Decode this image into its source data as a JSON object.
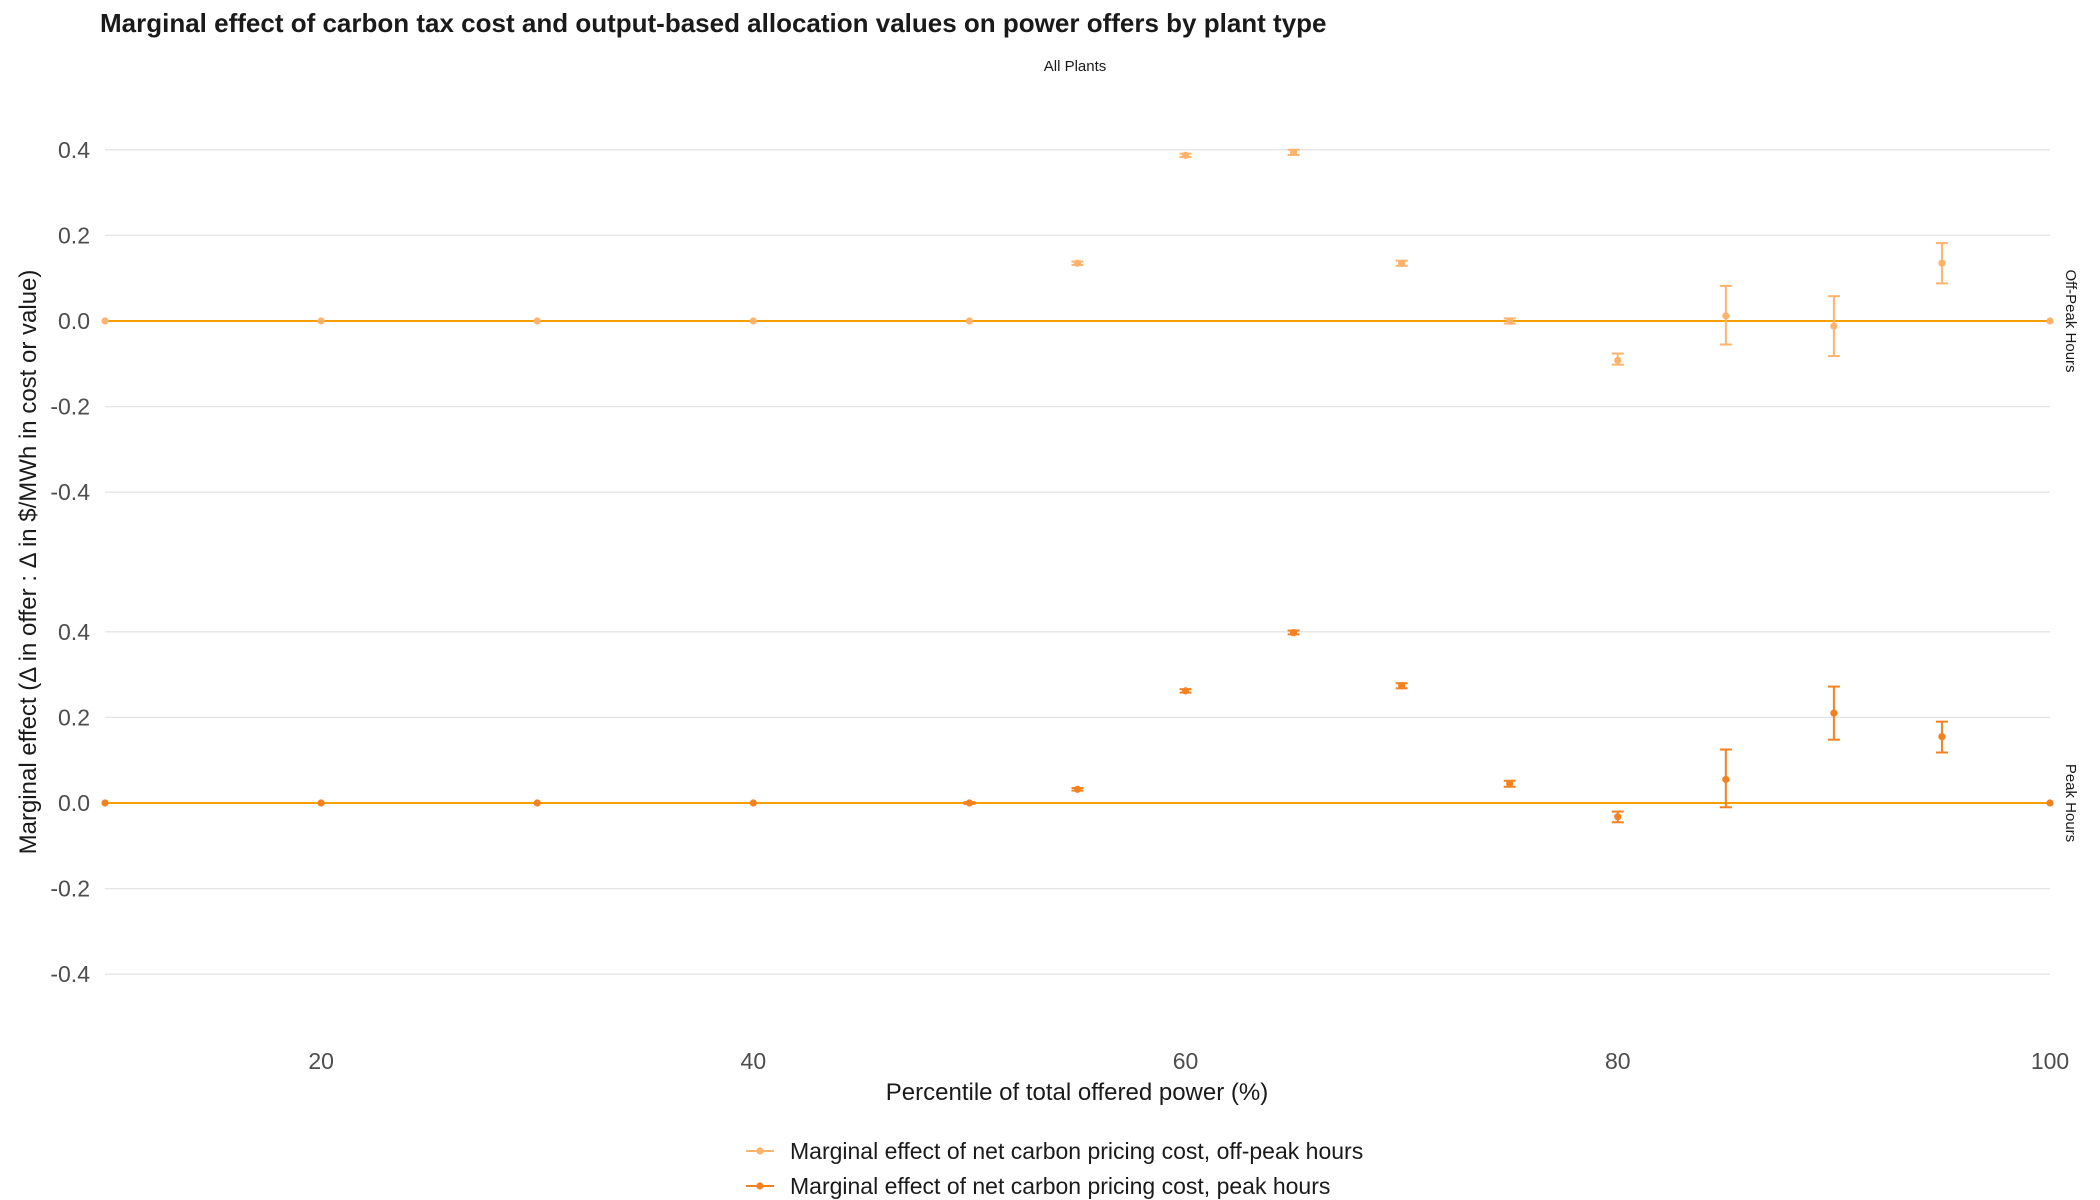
{
  "chart_data": {
    "type": "scatter",
    "title": "Marginal effect of carbon tax cost and output-based allocation values on power offers by plant type",
    "subtitle": "All Plants",
    "xlabel": "Percentile of total offered power (%)",
    "ylabel": "Marginal effect (Δ in offer : Δ in $/MWh in cost or value)",
    "xlim": [
      10,
      100
    ],
    "ylim": [
      -0.5,
      0.46
    ],
    "x_ticks": [
      "20",
      "40",
      "60",
      "80",
      "100"
    ],
    "y_ticks": [
      "0.4",
      "0.2",
      "0.0",
      "-0.2",
      "-0.4"
    ],
    "grid": true,
    "reference_line": 0,
    "legend_position": "bottom",
    "panels": [
      {
        "label": "Off-Peak Hours",
        "series": [
          {
            "name": "Marginal effect of net carbon pricing cost, off-peak hours",
            "color": "#fdb36b",
            "x": [
              10,
              20,
              30,
              40,
              50,
              55,
              60,
              65,
              70,
              75,
              80,
              85,
              90,
              95,
              100
            ],
            "y": [
              0.0,
              0.0,
              0.0,
              0.0,
              0.0,
              0.135,
              0.387,
              0.394,
              0.135,
              0.0,
              -0.092,
              0.012,
              -0.012,
              0.135,
              0.0
            ],
            "ci_low": [
              0.0,
              0.0,
              0.0,
              0.0,
              0.0,
              0.131,
              0.383,
              0.388,
              0.129,
              -0.006,
              -0.102,
              -0.055,
              -0.082,
              0.088,
              0.0
            ],
            "ci_high": [
              0.0,
              0.0,
              0.0,
              0.0,
              0.0,
              0.139,
              0.391,
              0.4,
              0.141,
              0.006,
              -0.076,
              0.082,
              0.058,
              0.182,
              0.0
            ]
          }
        ]
      },
      {
        "label": "Peak Hours",
        "series": [
          {
            "name": "Marginal effect of net carbon pricing cost, peak hours",
            "color": "#f4811f",
            "x": [
              10,
              20,
              30,
              40,
              50,
              55,
              60,
              65,
              70,
              75,
              80,
              85,
              90,
              95,
              100
            ],
            "y": [
              0.0,
              0.0,
              0.0,
              0.0,
              0.0,
              0.032,
              0.262,
              0.398,
              0.274,
              0.045,
              -0.032,
              0.055,
              0.21,
              0.155,
              0.0
            ],
            "ci_low": [
              0.0,
              0.0,
              0.0,
              0.0,
              -0.002,
              0.029,
              0.258,
              0.394,
              0.268,
              0.038,
              -0.045,
              -0.01,
              0.148,
              0.118,
              0.0
            ],
            "ci_high": [
              0.0,
              0.0,
              0.0,
              0.0,
              0.002,
              0.035,
              0.266,
              0.403,
              0.28,
              0.052,
              -0.02,
              0.125,
              0.272,
              0.19,
              0.0
            ]
          }
        ]
      }
    ],
    "ref_color": "#f59f00",
    "grid_color": "#e5e5e5"
  }
}
